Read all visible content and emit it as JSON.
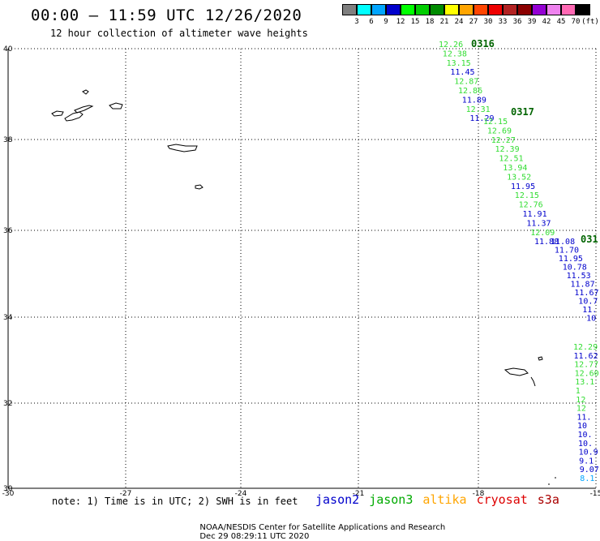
{
  "header": {
    "title": "00:00 – 11:59 UTC 12/26/2020",
    "subtitle": "12 hour collection of altimeter wave heights"
  },
  "colorbar": {
    "swatches": [
      "#7f7f7f",
      "#00ffff",
      "#00a5ff",
      "#0000cc",
      "#00ff00",
      "#00cd00",
      "#008b00",
      "#ffff00",
      "#ffa500",
      "#ff4500",
      "#ee0000",
      "#b22222",
      "#8b0000",
      "#9400d3",
      "#ee82ee",
      "#ff69b4",
      "#000000"
    ],
    "labels": [
      "3",
      "6",
      "9",
      "12",
      "15",
      "18",
      "21",
      "24",
      "27",
      "30",
      "33",
      "36",
      "39",
      "42",
      "45",
      "70",
      "(ft)"
    ]
  },
  "axes": {
    "lon_labels": [
      "-30",
      "-27",
      "-24",
      "-21",
      "-18",
      "-15"
    ],
    "lat_labels": [
      "40",
      "38",
      "36",
      "34",
      "32",
      "30"
    ]
  },
  "tracks": [
    {
      "pass": "0316",
      "points": [
        {
          "v": "12.26",
          "c": "#33dd33"
        },
        {
          "v": "12.38",
          "c": "#33dd33"
        },
        {
          "v": "13.15",
          "c": "#33dd33"
        },
        {
          "v": "11.45",
          "c": "#0000cc"
        },
        {
          "v": "12.87",
          "c": "#33dd33"
        },
        {
          "v": "12.86",
          "c": "#33dd33"
        },
        {
          "v": "11.89",
          "c": "#0000cc"
        },
        {
          "v": "12.31",
          "c": "#33dd33"
        },
        {
          "v": "11.29",
          "c": "#0000cc"
        }
      ]
    },
    {
      "pass": "0317",
      "points": [
        {
          "v": "12.15",
          "c": "#33dd33"
        },
        {
          "v": "12.69",
          "c": "#33dd33"
        },
        {
          "v": "12.27",
          "c": "#33dd33"
        },
        {
          "v": "12.39",
          "c": "#33dd33"
        },
        {
          "v": "12.51",
          "c": "#33dd33"
        },
        {
          "v": "13.94",
          "c": "#33dd33"
        },
        {
          "v": "13.52",
          "c": "#33dd33"
        },
        {
          "v": "11.95",
          "c": "#0000cc"
        },
        {
          "v": "12.15",
          "c": "#33dd33"
        },
        {
          "v": "12.76",
          "c": "#33dd33"
        },
        {
          "v": "11.91",
          "c": "#0000cc"
        },
        {
          "v": "11.37",
          "c": "#0000cc"
        },
        {
          "v": "12.09",
          "c": "#33dd33"
        },
        {
          "v": "11.88",
          "c": "#0000cc"
        }
      ]
    },
    {
      "pass": "031",
      "points": [
        {
          "v": "11.08",
          "c": "#0000cc"
        },
        {
          "v": "11.70",
          "c": "#0000cc"
        },
        {
          "v": "11.95",
          "c": "#0000cc"
        },
        {
          "v": "10.78",
          "c": "#0000cc"
        },
        {
          "v": "11.53",
          "c": "#0000cc"
        },
        {
          "v": "11.87",
          "c": "#0000cc"
        },
        {
          "v": "11.67",
          "c": "#0000cc"
        },
        {
          "v": "10.7",
          "c": "#0000cc"
        },
        {
          "v": "11.",
          "c": "#0000cc"
        },
        {
          "v": "10",
          "c": "#0000cc"
        }
      ]
    },
    {
      "pass": "",
      "points": [
        {
          "v": "12.29",
          "c": "#33dd33"
        },
        {
          "v": "11.62",
          "c": "#0000cc"
        },
        {
          "v": "12.77",
          "c": "#33dd33"
        },
        {
          "v": "12.60",
          "c": "#33dd33"
        },
        {
          "v": "13.1",
          "c": "#33dd33"
        },
        {
          "v": "1",
          "c": "#33dd33"
        },
        {
          "v": "12",
          "c": "#33dd33"
        },
        {
          "v": "12",
          "c": "#33dd33"
        },
        {
          "v": "11.",
          "c": "#0000cc"
        },
        {
          "v": "10",
          "c": "#0000cc"
        },
        {
          "v": "10.",
          "c": "#0000cc"
        },
        {
          "v": "10.",
          "c": "#0000cc"
        },
        {
          "v": "10.9",
          "c": "#0000cc"
        },
        {
          "v": "9.1",
          "c": "#0000cc"
        },
        {
          "v": "9.07",
          "c": "#0000cc"
        },
        {
          "v": "8.1",
          "c": "#00a5ff"
        }
      ]
    }
  ],
  "note": "note: 1) Time is in UTC; 2) SWH is in feet",
  "legend": [
    {
      "name": "jason2",
      "color": "#0000cc"
    },
    {
      "name": "jason3",
      "color": "#00aa00"
    },
    {
      "name": "altika",
      "color": "#ffa500"
    },
    {
      "name": "cryosat",
      "color": "#dd0000"
    },
    {
      "name": "s3a",
      "color": "#aa0000"
    }
  ],
  "footer": {
    "credit": "NOAA/NESDIS Center for Satellite Applications and Research",
    "timestamp": "Dec 29 08:29:11 UTC 2020"
  }
}
